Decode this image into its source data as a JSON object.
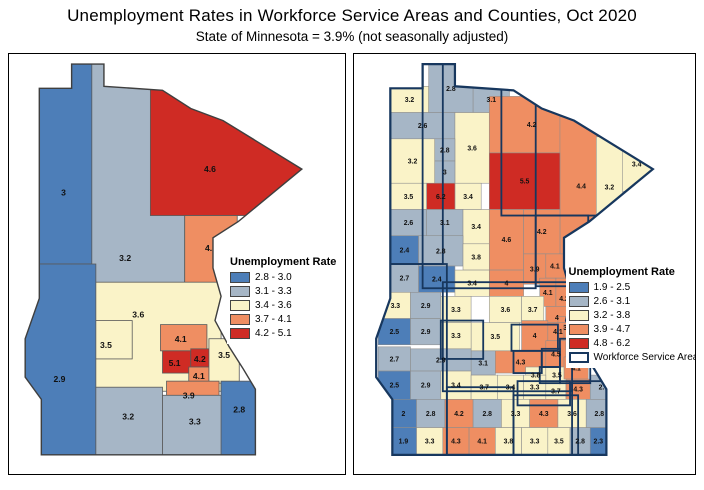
{
  "title": "Unemployment Rates in Workforce Service Areas and Counties, Oct 2020",
  "subtitle": "State of Minnesota = 3.9% (not seasonally adjusted)",
  "colors": {
    "blue": "#4d7eb8",
    "gray_blue": "#a6b6c6",
    "pale_yellow": "#faf3c8",
    "orange": "#ef8e62",
    "red": "#cf2b24",
    "workforce_border": "#17375e",
    "state_outline": "#3f3f3f"
  },
  "left_map": {
    "legend_title": "Unemployment Rate",
    "legend": [
      {
        "label": "2.8 - 3.0",
        "min": 2.8,
        "max": 3.0,
        "color": "#4d7eb8"
      },
      {
        "label": "3.1 - 3.3",
        "min": 3.1,
        "max": 3.3,
        "color": "#a6b6c6"
      },
      {
        "label": "3.4 - 3.6",
        "min": 3.4,
        "max": 3.6,
        "color": "#faf3c8"
      },
      {
        "label": "3.7 - 4.1",
        "min": 3.7,
        "max": 4.1,
        "color": "#ef8e62"
      },
      {
        "label": "4.2 - 5.1",
        "min": 4.2,
        "max": 5.1,
        "color": "#cf2b24"
      }
    ],
    "regions": [
      {
        "value": "3.2"
      },
      {
        "value": "3"
      },
      {
        "value": "4.6"
      },
      {
        "value": "4.1"
      },
      {
        "value": "3.6"
      },
      {
        "value": "3.5"
      },
      {
        "value": "4.1"
      },
      {
        "value": "5.1"
      },
      {
        "value": "4.2"
      },
      {
        "value": "4.1"
      },
      {
        "value": "3.5"
      },
      {
        "value": "3.9"
      },
      {
        "value": "2.9"
      },
      {
        "value": "3.2"
      },
      {
        "value": "3.3"
      },
      {
        "value": "2.8"
      }
    ]
  },
  "right_map": {
    "legend_title": "Unemployment Rate",
    "outline_legend_label": "Workforce Service Areas",
    "legend": [
      {
        "label": "1.9 - 2.5",
        "min": 1.9,
        "max": 2.5,
        "color": "#4d7eb8"
      },
      {
        "label": "2.6 - 3.1",
        "min": 2.6,
        "max": 3.1,
        "color": "#a6b6c6"
      },
      {
        "label": "3.2 - 3.8",
        "min": 3.2,
        "max": 3.8,
        "color": "#faf3c8"
      },
      {
        "label": "3.9 - 4.7",
        "min": 3.9,
        "max": 4.7,
        "color": "#ef8e62"
      },
      {
        "label": "4.8 - 6.2",
        "min": 4.8,
        "max": 6.2,
        "color": "#cf2b24"
      }
    ],
    "counties": [
      {
        "value": "3.2"
      },
      {
        "value": "2.8"
      },
      {
        "value": "3.1"
      },
      {
        "value": "2.6"
      },
      {
        "value": "3.6"
      },
      {
        "value": "4.2"
      },
      {
        "value": "4.4"
      },
      {
        "value": "3.4"
      },
      {
        "value": "3.2"
      },
      {
        "value": "5.5"
      },
      {
        "value": "3.2"
      },
      {
        "value": "2.8"
      },
      {
        "value": "3"
      },
      {
        "value": "3.4"
      },
      {
        "value": "3.5"
      },
      {
        "value": "6.2"
      },
      {
        "value": "2.6"
      },
      {
        "value": "3.1"
      },
      {
        "value": "3.4"
      },
      {
        "value": "4.6"
      },
      {
        "value": "4.2"
      },
      {
        "value": "2.4"
      },
      {
        "value": "2.8"
      },
      {
        "value": "3.8"
      },
      {
        "value": "4"
      },
      {
        "value": "4.1"
      },
      {
        "value": "2.7"
      },
      {
        "value": "2.4"
      },
      {
        "value": "3.4"
      },
      {
        "value": "3.6"
      },
      {
        "value": "3.9"
      },
      {
        "value": "4.1"
      },
      {
        "value": "4.2"
      },
      {
        "value": "3.3"
      },
      {
        "value": "2.9"
      },
      {
        "value": "3.3"
      },
      {
        "value": "3.5"
      },
      {
        "value": "3.7"
      },
      {
        "value": "4"
      },
      {
        "value": "3.9"
      },
      {
        "value": "2.5"
      },
      {
        "value": "2.9"
      },
      {
        "value": "3.3"
      },
      {
        "value": "3.1"
      },
      {
        "value": "4.3"
      },
      {
        "value": "4"
      },
      {
        "value": "4.1"
      },
      {
        "value": "3.9"
      },
      {
        "value": "4.5"
      },
      {
        "value": "4.8"
      },
      {
        "value": "3.8"
      },
      {
        "value": "3.5"
      },
      {
        "value": "4.1"
      },
      {
        "value": "2.7"
      },
      {
        "value": "2.9"
      },
      {
        "value": "2.5"
      },
      {
        "value": "2.9"
      },
      {
        "value": "3.4"
      },
      {
        "value": "3.7"
      },
      {
        "value": "3.4"
      },
      {
        "value": "3.3"
      },
      {
        "value": "3.7"
      },
      {
        "value": "4.3"
      },
      {
        "value": "2.7"
      },
      {
        "value": "2"
      },
      {
        "value": "2.8"
      },
      {
        "value": "4.2"
      },
      {
        "value": "2.8"
      },
      {
        "value": "3.3"
      },
      {
        "value": "4.3"
      },
      {
        "value": "3.6"
      },
      {
        "value": "2.8"
      },
      {
        "value": "1.9"
      },
      {
        "value": "3.3"
      },
      {
        "value": "4.3"
      },
      {
        "value": "4.1"
      },
      {
        "value": "3.8"
      },
      {
        "value": "3.3"
      },
      {
        "value": "3.5"
      },
      {
        "value": "2.8"
      },
      {
        "value": "2.3"
      }
    ]
  }
}
